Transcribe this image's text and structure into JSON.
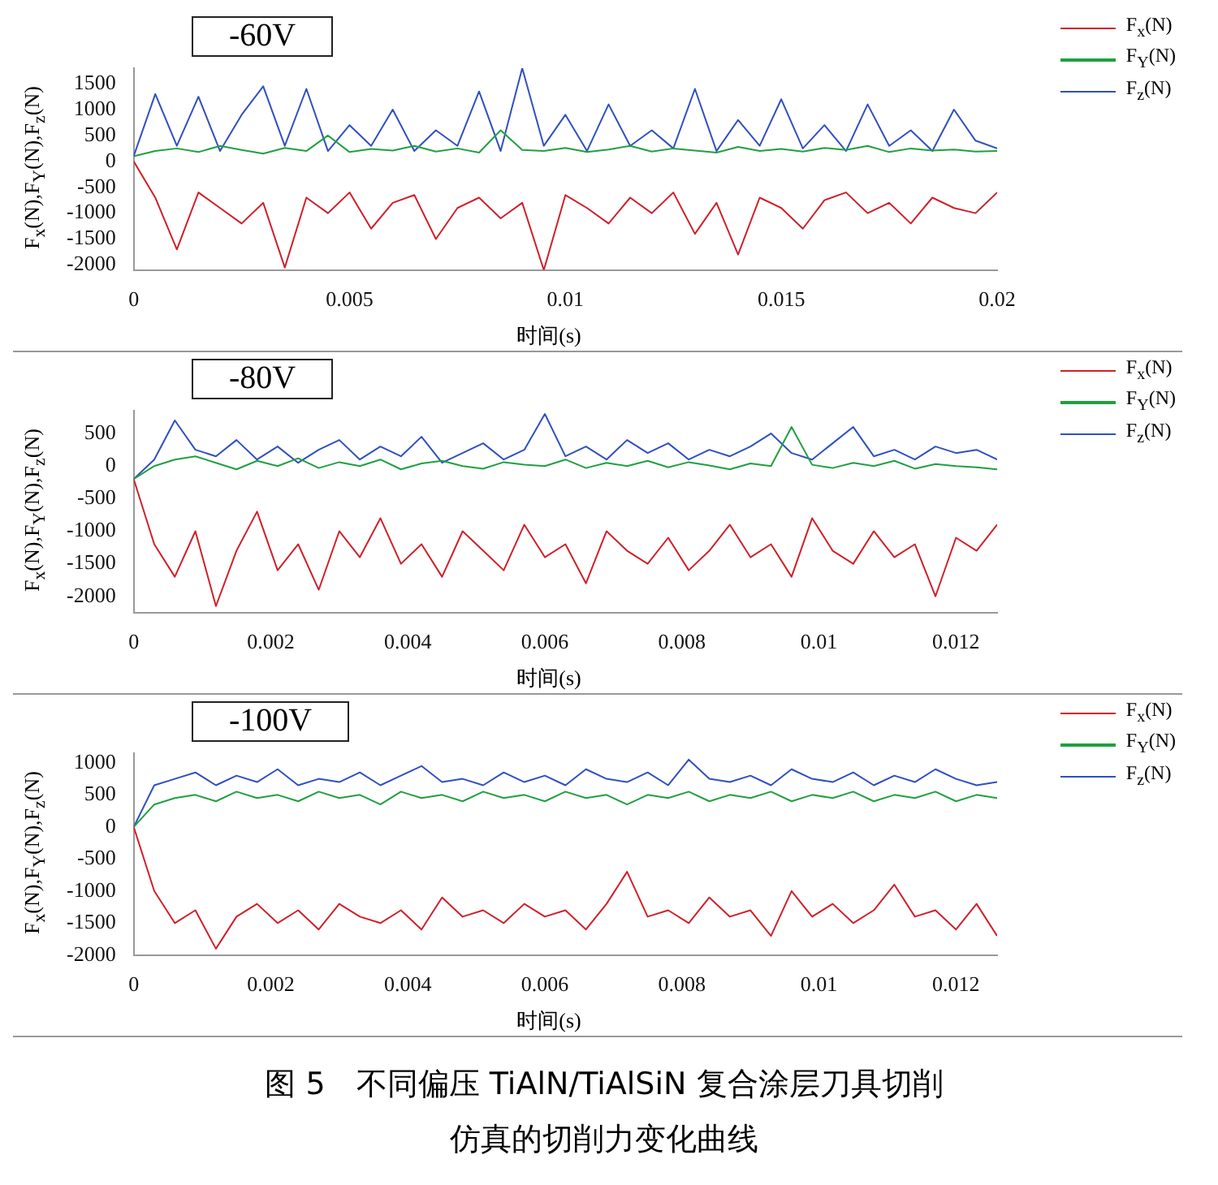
{
  "chart_data": [
    {
      "type": "line",
      "title": "-60V",
      "xlabel": "时间(s)",
      "ylabel": "F$_{x}$(N),F$_{Y}$(N),F$_{z}$(N)",
      "legend": "top right",
      "marker": "none",
      "x": [
        0,
        0.0005,
        0.001,
        0.0015,
        0.002,
        0.0025,
        0.003,
        0.0035,
        0.004,
        0.0045,
        0.005,
        0.0055,
        0.006,
        0.0065,
        0.007,
        0.0075,
        0.008,
        0.0085,
        0.009,
        0.0095,
        0.01,
        0.0105,
        0.011,
        0.0115,
        0.012,
        0.0125,
        0.013,
        0.0135,
        0.014,
        0.0145,
        0.015,
        0.0155,
        0.016,
        0.0165,
        0.017,
        0.0175,
        0.018,
        0.0185,
        0.019,
        0.0195,
        0.02
      ],
      "xlim": [
        0,
        0.02
      ],
      "xticks": [
        0,
        0.005,
        0.01,
        0.015,
        0.02
      ],
      "ylim": [
        -2100,
        1800
      ],
      "yticks": [
        -2000,
        -1500,
        -1000,
        -500,
        0,
        500,
        1000,
        1500
      ],
      "series": [
        {
          "name": "F$_{x}$(N)",
          "color": "#d0202a",
          "values": [
            0,
            -700,
            -1700,
            -600,
            -900,
            -1200,
            -800,
            -2050,
            -700,
            -1000,
            -600,
            -1300,
            -800,
            -650,
            -1500,
            -900,
            -700,
            -1100,
            -800,
            -2100,
            -650,
            -900,
            -1200,
            -700,
            -1000,
            -600,
            -1400,
            -800,
            -1800,
            -700,
            -900,
            -1300,
            -750,
            -600,
            -1000,
            -800,
            -1200,
            -700,
            -900,
            -1000,
            -600
          ]
        },
        {
          "name": "F$_{Y}$(N)",
          "color": "#20a040",
          "values": [
            100,
            200,
            250,
            180,
            300,
            220,
            150,
            260,
            200,
            500,
            180,
            240,
            210,
            300,
            190,
            250,
            170,
            600,
            220,
            200,
            260,
            180,
            230,
            300,
            190,
            250,
            210,
            170,
            280,
            200,
            240,
            190,
            260,
            220,
            300,
            180,
            250,
            210,
            230,
            190,
            200
          ]
        },
        {
          "name": "F$_{z}$(N)",
          "color": "#3050c0",
          "values": [
            100,
            1300,
            300,
            1250,
            200,
            900,
            1450,
            300,
            1400,
            200,
            700,
            300,
            1000,
            200,
            600,
            300,
            1350,
            200,
            1800,
            300,
            900,
            200,
            1100,
            300,
            600,
            250,
            1400,
            200,
            800,
            300,
            1200,
            250,
            700,
            200,
            1100,
            300,
            600,
            200,
            1000,
            400,
            250
          ]
        }
      ]
    },
    {
      "type": "line",
      "title": "-80V",
      "xlabel": "时间(s)",
      "ylabel": "F$_{x}$(N),F$_{Y}$(N),F$_{z}$(N)",
      "legend": "top right",
      "marker": "none",
      "x": [
        0,
        0.0003,
        0.0006,
        0.0009,
        0.0012,
        0.0015,
        0.0018,
        0.0021,
        0.0024,
        0.0027,
        0.003,
        0.0033,
        0.0036,
        0.0039,
        0.0042,
        0.0045,
        0.0048,
        0.0051,
        0.0054,
        0.0057,
        0.006,
        0.0063,
        0.0066,
        0.0069,
        0.0072,
        0.0075,
        0.0078,
        0.0081,
        0.0084,
        0.0087,
        0.009,
        0.0093,
        0.0096,
        0.0099,
        0.0102,
        0.0105,
        0.0108,
        0.0111,
        0.0114,
        0.0117,
        0.012,
        0.0123,
        0.0126
      ],
      "xlim": [
        0,
        0.0126
      ],
      "xticks": [
        0,
        0.002,
        0.004,
        0.006,
        0.008,
        0.01,
        0.012
      ],
      "ylim": [
        -2250,
        850
      ],
      "yticks": [
        -2000,
        -1500,
        -1000,
        -500,
        0,
        500
      ],
      "series": [
        {
          "name": "F$_{x}$(N)",
          "color": "#d0202a",
          "values": [
            -200,
            -1200,
            -1700,
            -1000,
            -2150,
            -1300,
            -700,
            -1600,
            -1200,
            -1900,
            -1000,
            -1400,
            -800,
            -1500,
            -1200,
            -1700,
            -1000,
            -1300,
            -1600,
            -900,
            -1400,
            -1200,
            -1800,
            -1000,
            -1300,
            -1500,
            -1100,
            -1600,
            -1300,
            -900,
            -1400,
            -1200,
            -1700,
            -800,
            -1300,
            -1500,
            -1000,
            -1400,
            -1200,
            -2000,
            -1100,
            -1300,
            -900
          ]
        },
        {
          "name": "F$_{Y}$(N)",
          "color": "#20a040",
          "values": [
            -200,
            0,
            100,
            150,
            50,
            -50,
            80,
            0,
            120,
            -30,
            60,
            0,
            100,
            -50,
            40,
            80,
            0,
            -40,
            60,
            20,
            0,
            100,
            -30,
            50,
            0,
            80,
            -20,
            60,
            10,
            -50,
            40,
            0,
            600,
            20,
            -30,
            50,
            0,
            80,
            -40,
            30,
            0,
            -20,
            -50
          ]
        },
        {
          "name": "F$_{z}$(N)",
          "color": "#3050c0",
          "values": [
            -200,
            100,
            700,
            250,
            150,
            400,
            100,
            300,
            50,
            250,
            400,
            100,
            300,
            150,
            450,
            50,
            200,
            350,
            100,
            250,
            800,
            150,
            300,
            100,
            400,
            200,
            350,
            100,
            250,
            150,
            300,
            500,
            200,
            100,
            350,
            600,
            150,
            250,
            100,
            300,
            200,
            250,
            100
          ]
        }
      ]
    },
    {
      "type": "line",
      "title": "-100V",
      "xlabel": "时间(s)",
      "ylabel": "F$_{x}$(N),F$_{Y}$(N),F$_{z}$(N)",
      "legend": "top right",
      "marker": "none",
      "annotations": [
        "图 5　不同偏压 TiAlN/TiAlSiN 复合涂层刀具切削仿真的切削力变化曲线"
      ],
      "x": [
        0,
        0.0003,
        0.0006,
        0.0009,
        0.0012,
        0.0015,
        0.0018,
        0.0021,
        0.0024,
        0.0027,
        0.003,
        0.0033,
        0.0036,
        0.0039,
        0.0042,
        0.0045,
        0.0048,
        0.0051,
        0.0054,
        0.0057,
        0.006,
        0.0063,
        0.0066,
        0.0069,
        0.0072,
        0.0075,
        0.0078,
        0.0081,
        0.0084,
        0.0087,
        0.009,
        0.0093,
        0.0096,
        0.0099,
        0.0102,
        0.0105,
        0.0108,
        0.0111,
        0.0114,
        0.0117,
        0.012,
        0.0123,
        0.0126
      ],
      "xlim": [
        0,
        0.0126
      ],
      "xticks": [
        0,
        0.002,
        0.004,
        0.006,
        0.008,
        0.01,
        0.012
      ],
      "ylim": [
        -2000,
        1150
      ],
      "yticks": [
        -2000,
        -1500,
        -1000,
        -500,
        0,
        500,
        1000
      ],
      "series": [
        {
          "name": "F$_{x}$(N)",
          "color": "#d0202a",
          "values": [
            0,
            -1000,
            -1500,
            -1300,
            -1900,
            -1400,
            -1200,
            -1500,
            -1300,
            -1600,
            -1200,
            -1400,
            -1500,
            -1300,
            -1600,
            -1100,
            -1400,
            -1300,
            -1500,
            -1200,
            -1400,
            -1300,
            -1600,
            -1200,
            -700,
            -1400,
            -1300,
            -1500,
            -1100,
            -1400,
            -1300,
            -1700,
            -1000,
            -1400,
            -1200,
            -1500,
            -1300,
            -900,
            -1400,
            -1300,
            -1600,
            -1200,
            -1700
          ]
        },
        {
          "name": "F$_{Y}$(N)",
          "color": "#20a040",
          "values": [
            0,
            350,
            450,
            500,
            400,
            550,
            450,
            500,
            400,
            550,
            450,
            500,
            350,
            550,
            450,
            500,
            400,
            550,
            450,
            500,
            400,
            550,
            450,
            500,
            350,
            500,
            450,
            550,
            400,
            500,
            450,
            550,
            400,
            500,
            450,
            550,
            400,
            500,
            450,
            550,
            400,
            500,
            450
          ]
        },
        {
          "name": "F$_{z}$(N)",
          "color": "#3050c0",
          "values": [
            0,
            650,
            750,
            850,
            650,
            800,
            700,
            900,
            650,
            750,
            700,
            850,
            650,
            800,
            950,
            700,
            750,
            650,
            850,
            700,
            800,
            650,
            900,
            750,
            700,
            850,
            650,
            1050,
            750,
            700,
            800,
            650,
            900,
            750,
            700,
            850,
            650,
            800,
            700,
            900,
            750,
            650,
            700
          ]
        }
      ]
    }
  ]
}
